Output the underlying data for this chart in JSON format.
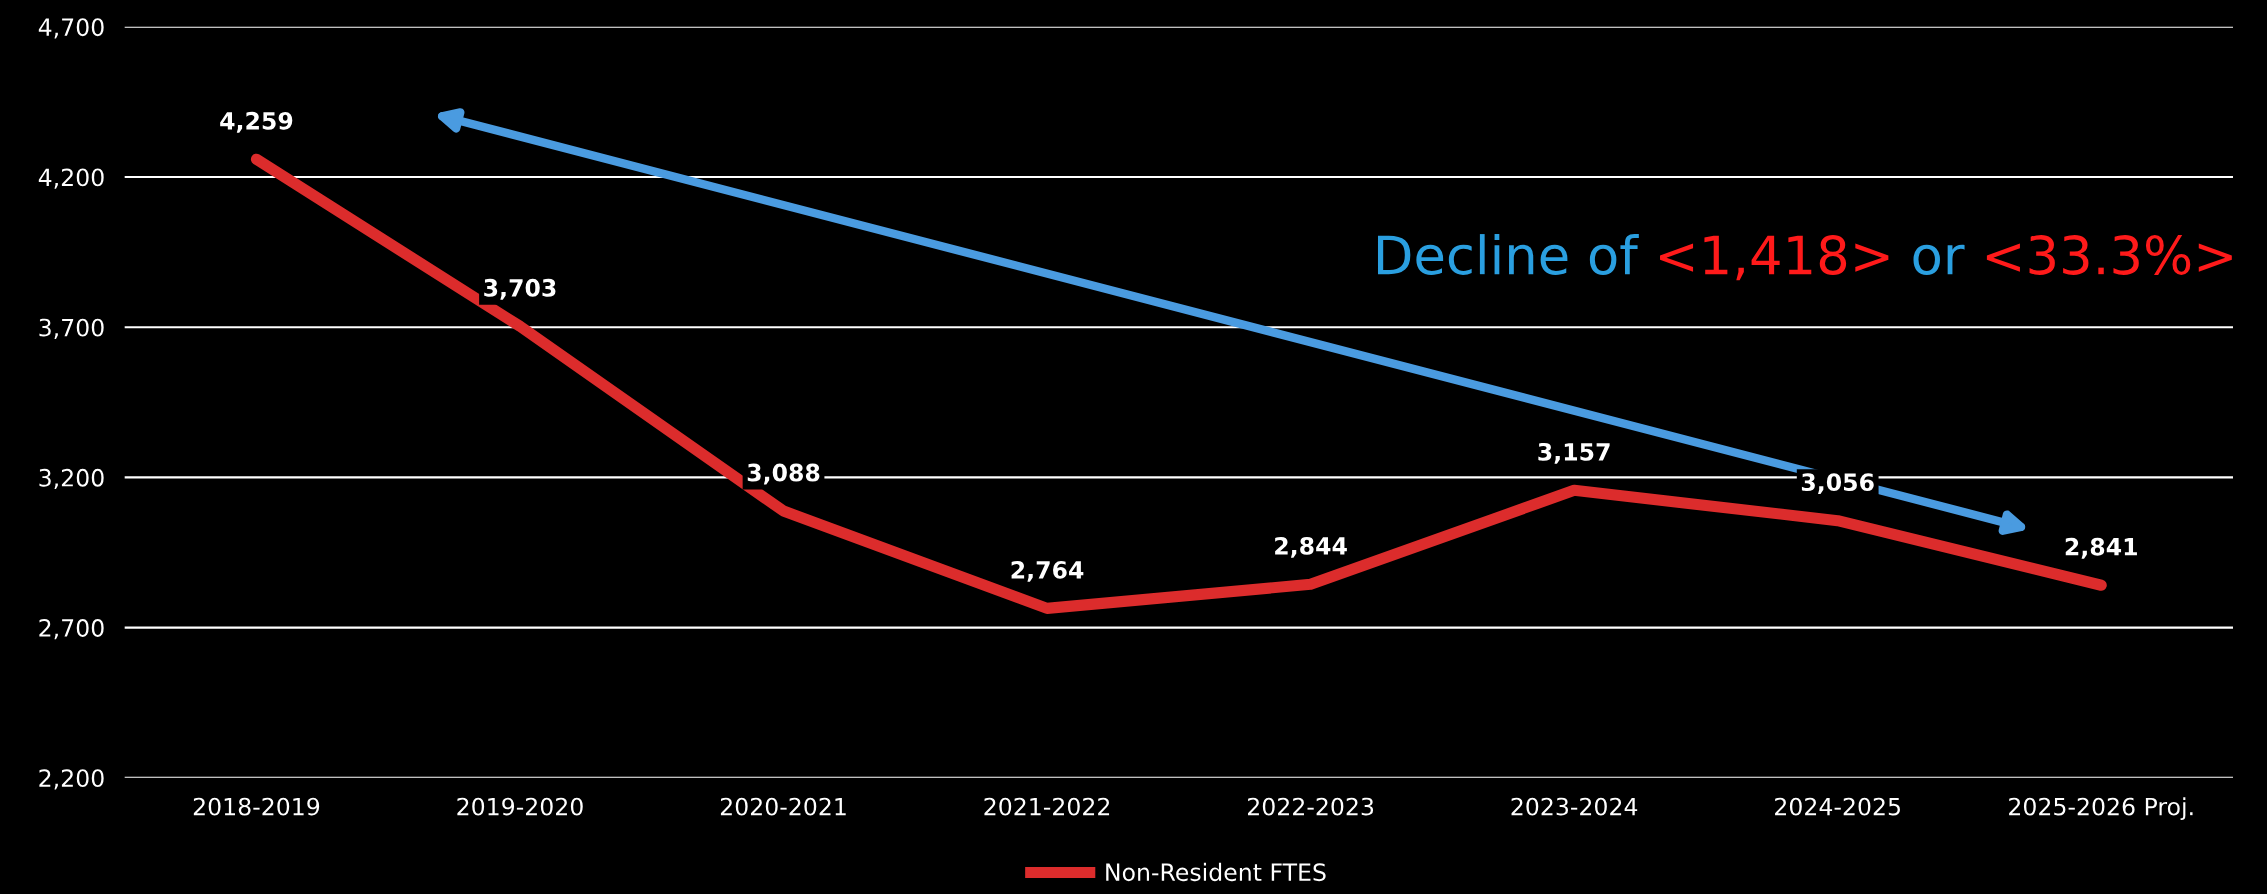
{
  "chart_data": {
    "type": "line",
    "categories": [
      "2018-2019",
      "2019-2020",
      "2020-2021",
      "2021-2022",
      "2022-2023",
      "2023-2024",
      "2024-2025",
      "2025-2026 Proj."
    ],
    "series": [
      {
        "name": "Non-Resident FTES",
        "color": "#dc2c2c",
        "values": [
          4259,
          3703,
          3088,
          2764,
          2844,
          3157,
          3056,
          2841
        ],
        "value_labels": [
          "4,259",
          "3,703",
          "3,088",
          "2,764",
          "2,844",
          "3,157",
          "3,056",
          "2,841"
        ]
      }
    ],
    "ylim": [
      2200,
      4700
    ],
    "yticks": [
      {
        "value": 2200,
        "label": "2,200"
      },
      {
        "value": 2700,
        "label": "2,700"
      },
      {
        "value": 3200,
        "label": "3,200"
      },
      {
        "value": 3700,
        "label": "3,700"
      },
      {
        "value": 4200,
        "label": "4,200"
      },
      {
        "value": 4700,
        "label": "4,700"
      }
    ],
    "grid": "y",
    "legend": "bottom",
    "marker": "none",
    "line_style": "solid",
    "annotations": [
      "Decline of ",
      "<1,418>",
      " or ",
      "<33.3%>"
    ]
  }
}
